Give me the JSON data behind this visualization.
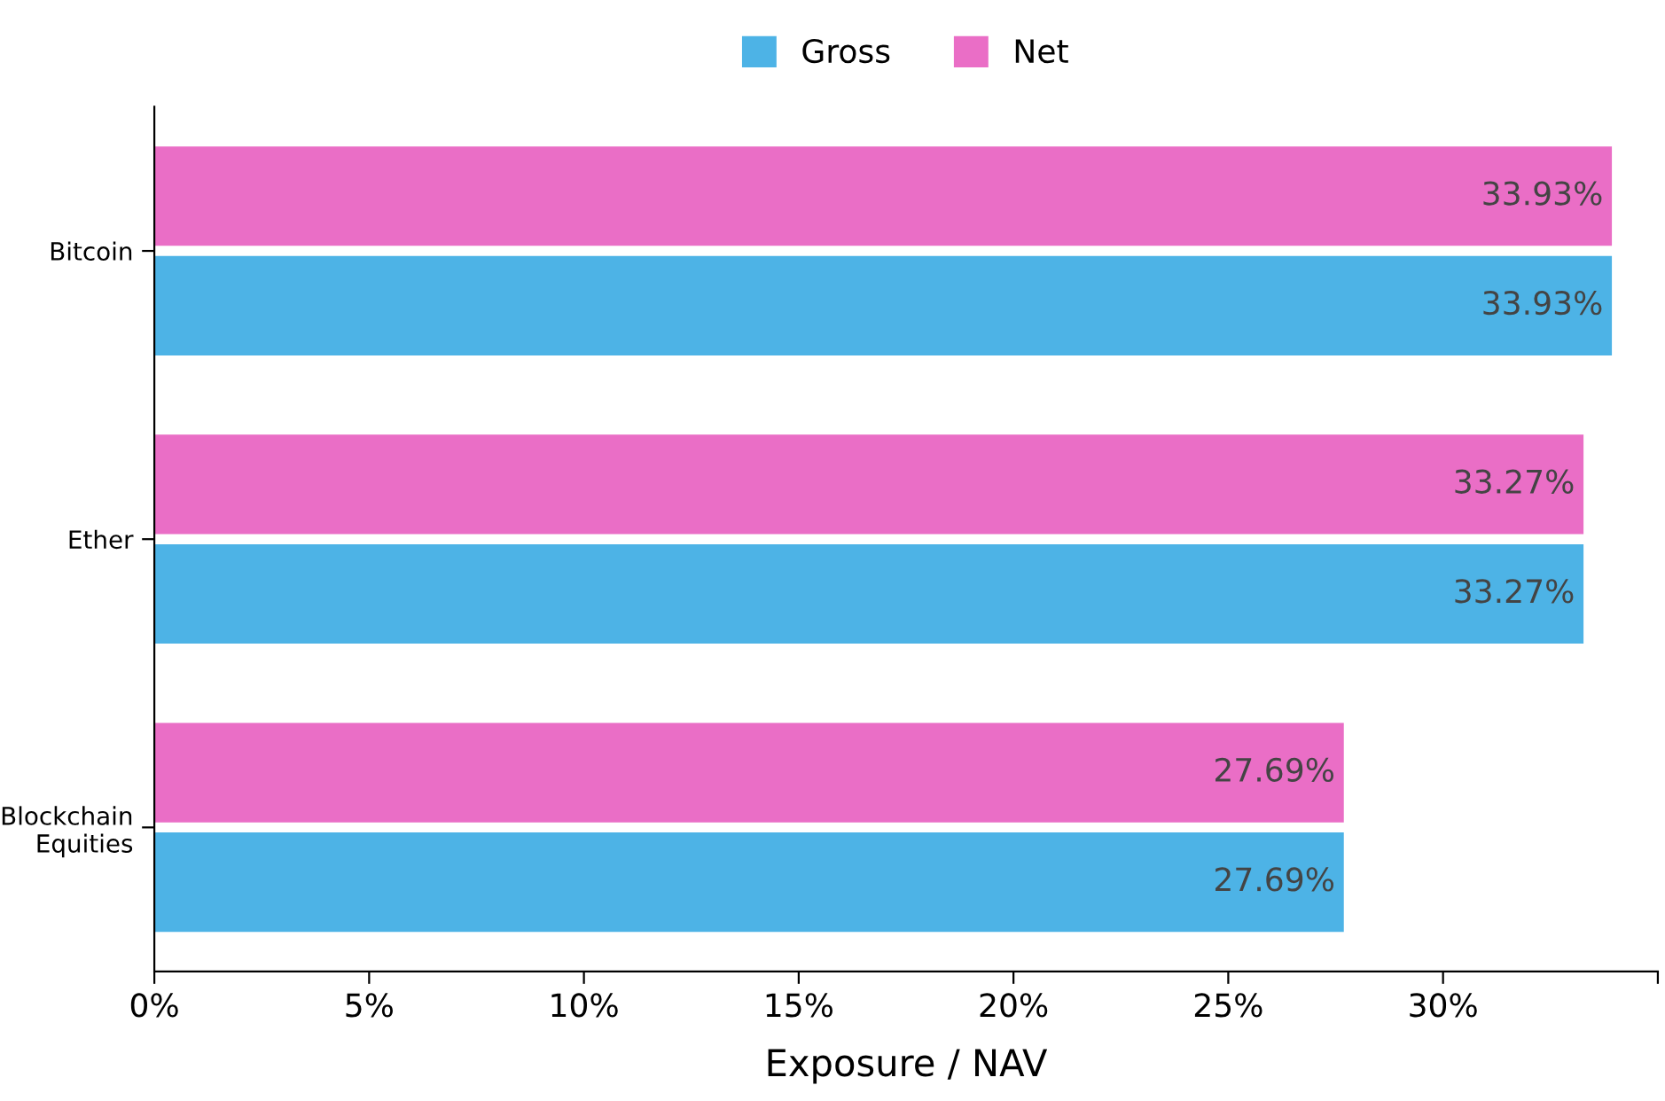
{
  "chart_data": {
    "type": "bar",
    "orientation": "horizontal",
    "categories": [
      "Bitcoin",
      "Ether",
      "Blockchain\nEquities"
    ],
    "series": [
      {
        "name": "Gross",
        "color": "#4db3e6",
        "values": [
          33.93,
          33.27,
          27.69
        ],
        "value_labels": [
          "33.93%",
          "33.27%",
          "27.69%"
        ]
      },
      {
        "name": "Net",
        "color": "#ea6ec6",
        "values": [
          33.93,
          33.27,
          27.69
        ],
        "value_labels": [
          "33.93%",
          "33.27%",
          "27.69%"
        ]
      }
    ],
    "xlabel": "Exposure / NAV",
    "xlim": [
      0,
      35
    ],
    "xticks": [
      {
        "value": 0,
        "label": "0%"
      },
      {
        "value": 5,
        "label": "5%"
      },
      {
        "value": 10,
        "label": "10%"
      },
      {
        "value": 15,
        "label": "15%"
      },
      {
        "value": 20,
        "label": "20%"
      },
      {
        "value": 25,
        "label": "25%"
      },
      {
        "value": 30,
        "label": "30%"
      },
      {
        "value": 35,
        "label": null
      }
    ],
    "legend": "top",
    "grid": false
  }
}
